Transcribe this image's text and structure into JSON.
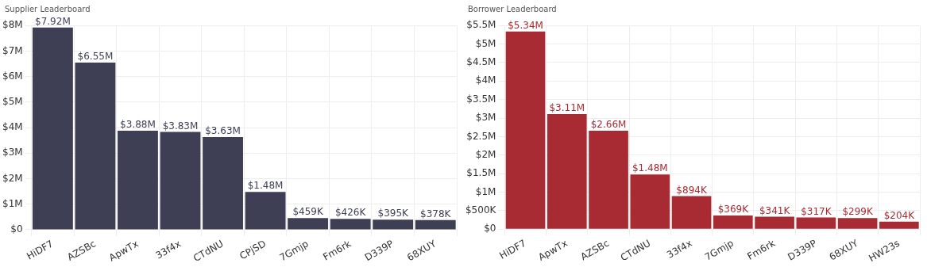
{
  "chart_data": [
    {
      "type": "bar",
      "title": "Supplier Leaderboard",
      "categories": [
        "HiDF7",
        "AZSBc",
        "ApwTx",
        "33f4x",
        "CTdNU",
        "CPjSD",
        "7Gmjp",
        "Fm6rk",
        "D339P",
        "68XUY"
      ],
      "values": [
        7920000,
        6550000,
        3880000,
        3830000,
        3630000,
        1480000,
        459000,
        426000,
        395000,
        378000
      ],
      "value_labels": [
        "$7.92M",
        "$6.55M",
        "$3.88M",
        "$3.83M",
        "$3.63M",
        "$1.48M",
        "$459K",
        "$426K",
        "$395K",
        "$378K"
      ],
      "color": "#3e3f55",
      "ylim": [
        0,
        8000000
      ],
      "yticks": [
        {
          "value": 0,
          "label": "$0"
        },
        {
          "value": 1000000,
          "label": "$1M"
        },
        {
          "value": 2000000,
          "label": "$2M"
        },
        {
          "value": 3000000,
          "label": "$3M"
        },
        {
          "value": 4000000,
          "label": "$4M"
        },
        {
          "value": 5000000,
          "label": "$5M"
        },
        {
          "value": 6000000,
          "label": "$6M"
        },
        {
          "value": 7000000,
          "label": "$7M"
        },
        {
          "value": 8000000,
          "label": "$8M"
        }
      ],
      "grid": true,
      "legend": false
    },
    {
      "type": "bar",
      "title": "Borrower Leaderboard",
      "categories": [
        "HiDF7",
        "ApwTx",
        "AZSBc",
        "CTdNU",
        "33f4x",
        "7Gmjp",
        "Fm6rk",
        "D339P",
        "68XUY",
        "HW23s"
      ],
      "values": [
        5340000,
        3110000,
        2660000,
        1480000,
        894000,
        369000,
        341000,
        317000,
        299000,
        204000
      ],
      "value_labels": [
        "$5.34M",
        "$3.11M",
        "$2.66M",
        "$1.48M",
        "$894K",
        "$369K",
        "$341K",
        "$317K",
        "$299K",
        "$204K"
      ],
      "color": "#a82b33",
      "ylim": [
        0,
        5500000
      ],
      "yticks": [
        {
          "value": 0,
          "label": "$0"
        },
        {
          "value": 500000,
          "label": "$500K"
        },
        {
          "value": 1000000,
          "label": "$1M"
        },
        {
          "value": 1500000,
          "label": "$1.5M"
        },
        {
          "value": 2000000,
          "label": "$2M"
        },
        {
          "value": 2500000,
          "label": "$2.5M"
        },
        {
          "value": 3000000,
          "label": "$3M"
        },
        {
          "value": 3500000,
          "label": "$3.5M"
        },
        {
          "value": 4000000,
          "label": "$4M"
        },
        {
          "value": 4500000,
          "label": "$4.5M"
        },
        {
          "value": 5000000,
          "label": "$5M"
        },
        {
          "value": 5500000,
          "label": "$5.5M"
        }
      ],
      "grid": true,
      "legend": false
    }
  ]
}
